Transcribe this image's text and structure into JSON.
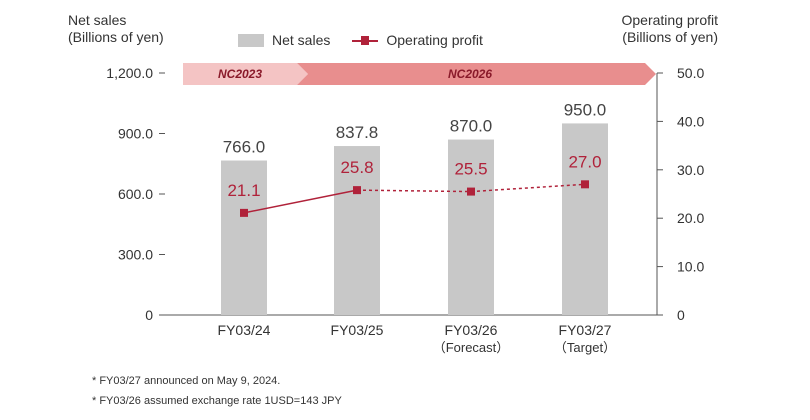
{
  "header": {
    "left_axis_title_line1": "Net sales",
    "left_axis_title_line2": "(Billions of yen)",
    "right_axis_title_line1": "Operating profit",
    "right_axis_title_line2": "(Billions of yen)"
  },
  "legend": {
    "bar_label": "Net sales",
    "line_label": "Operating profit"
  },
  "colors": {
    "bar": "#c8c8c8",
    "line": "#b0223a",
    "period1_fill": "#f4c4c4",
    "period2_fill": "#e88e8e",
    "period_text": "#8a1a2a",
    "axis": "#555555"
  },
  "chart_data": {
    "type": "bar",
    "categories": [
      {
        "line1": "FY03/24",
        "line2": ""
      },
      {
        "line1": "FY03/25",
        "line2": ""
      },
      {
        "line1": "FY03/26",
        "line2": "（Forecast）"
      },
      {
        "line1": "FY03/27",
        "line2": "（Target）"
      }
    ],
    "series": [
      {
        "name": "Net sales",
        "axis": "left",
        "values": [
          766.0,
          837.8,
          870.0,
          950.0
        ],
        "labels": [
          "766.0",
          "837.8",
          "870.0",
          "950.0"
        ]
      },
      {
        "name": "Operating profit",
        "axis": "right",
        "type": "line",
        "values": [
          21.1,
          25.8,
          25.5,
          27.0
        ],
        "labels": [
          "21.1",
          "25.8",
          "25.5",
          "27.0"
        ],
        "dashed_from_index": 1
      }
    ],
    "ylim_left": [
      0,
      1200
    ],
    "ylim_right": [
      0,
      50
    ],
    "yticks_left": [
      {
        "value": 0,
        "label": "0"
      },
      {
        "value": 300,
        "label": "300.0"
      },
      {
        "value": 600,
        "label": "600.0"
      },
      {
        "value": 900,
        "label": "900.0"
      },
      {
        "value": 1200,
        "label": "1,200.0"
      }
    ],
    "yticks_right": [
      {
        "value": 0,
        "label": "0"
      },
      {
        "value": 10,
        "label": "10.0"
      },
      {
        "value": 20,
        "label": "20.0"
      },
      {
        "value": 30,
        "label": "30.0"
      },
      {
        "value": 40,
        "label": "40.0"
      },
      {
        "value": 50,
        "label": "50.0"
      }
    ],
    "periods": [
      {
        "label": "NC2023",
        "start_index": 0,
        "end_index": 0
      },
      {
        "label": "NC2026",
        "start_index": 1,
        "end_index": 3
      }
    ]
  },
  "notes": [
    "* FY03/27 announced on May 9, 2024.",
    "* FY03/26 assumed exchange rate 1USD=143 JPY"
  ]
}
